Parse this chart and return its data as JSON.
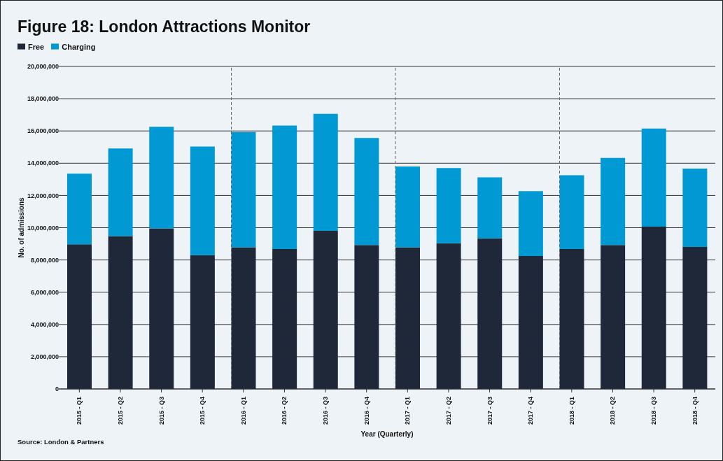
{
  "chart_data": {
    "type": "bar",
    "title": "Figure 18: London Attractions Monitor",
    "xlabel": "Year (Quarterly)",
    "ylabel": "No. of admissions",
    "categories": [
      "2015 - Q1",
      "2015 - Q2",
      "2015 - Q3",
      "2015 - Q4",
      "2016 - Q1",
      "2016 - Q2",
      "2016 - Q3",
      "2016 - Q4",
      "2017 - Q1",
      "2017 - Q2",
      "2017 - Q3",
      "2017 - Q4",
      "2018 - Q1",
      "2018 - Q2",
      "2018 - Q3",
      "2018 - Q4"
    ],
    "series": [
      {
        "name": "Free",
        "color": "#1f2838",
        "values": [
          8970000,
          9480000,
          9960000,
          8300000,
          8780000,
          8680000,
          9800000,
          8930000,
          8780000,
          9030000,
          9340000,
          8240000,
          8680000,
          8930000,
          10070000,
          8810000
        ]
      },
      {
        "name": "Charging",
        "color": "#0099d3",
        "values": [
          4380000,
          5430000,
          6300000,
          6730000,
          7150000,
          7650000,
          7260000,
          6630000,
          5020000,
          4670000,
          3780000,
          4030000,
          4570000,
          5400000,
          6080000,
          4860000
        ]
      }
    ],
    "stacked": true,
    "ylim": [
      0,
      20000000
    ],
    "yticks": [
      0,
      {
        "value": 2000000,
        "label": "2,000,000"
      },
      {
        "value": 4000000,
        "label": "4,000,000"
      },
      {
        "value": 6000000,
        "label": "6,000,000"
      },
      {
        "value": 8000000,
        "label": "8,000,000"
      },
      {
        "value": 10000000,
        "label": "10,000,000"
      },
      {
        "value": 12000000,
        "label": "12,000,000"
      },
      {
        "value": 14000000,
        "label": "14,000,000"
      },
      {
        "value": 16000000,
        "label": "16,000,000"
      },
      {
        "value": 18000000,
        "label": "18,000,000"
      },
      {
        "value": 20000000,
        "label": "20,000,000"
      }
    ],
    "grid": "y",
    "legend": "top left",
    "ref_lines": [
      {
        "axis": "x",
        "value": "2016 - Q1",
        "color": "#666666",
        "line_style": "dashed"
      },
      {
        "axis": "x",
        "value": "2017 - Q1",
        "color": "#666666",
        "line_style": "dashed"
      },
      {
        "axis": "x",
        "value": "2018 - Q1",
        "color": "#666666",
        "line_style": "dashed"
      }
    ],
    "annotations": [
      "Source: London & Partners"
    ]
  }
}
